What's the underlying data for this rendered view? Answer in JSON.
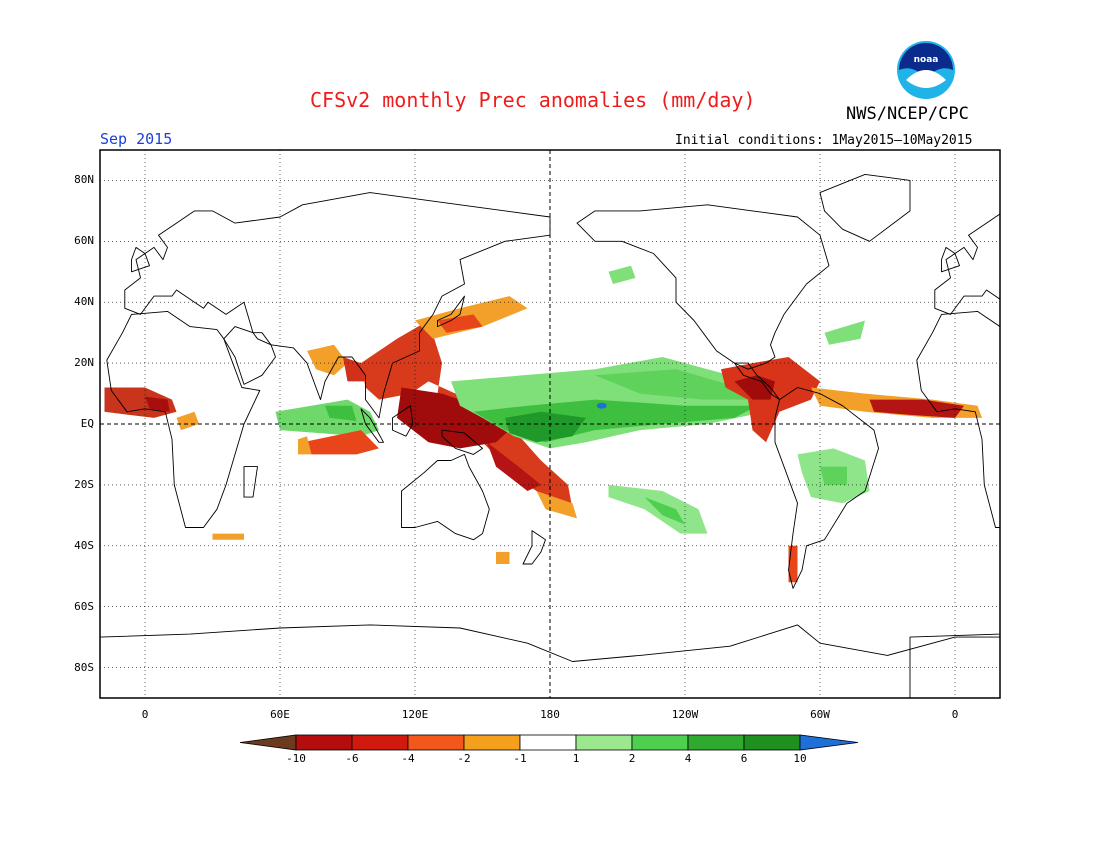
{
  "title": "CFSv2 monthly Prec anomalies (mm/day)",
  "agency": "NWS/NCEP/CPC",
  "logo_text": "noaa",
  "valid_month": "Sep 2015",
  "initial_conditions": "Initial conditions: 1May2015–10May2015",
  "map": {
    "projection": "equirectangular",
    "lon_range": [
      -20,
      380
    ],
    "lat_range": [
      -90,
      90
    ],
    "lat_ticks": [
      {
        "label": "80N",
        "lat": 80
      },
      {
        "label": "60N",
        "lat": 60
      },
      {
        "label": "40N",
        "lat": 40
      },
      {
        "label": "20N",
        "lat": 20
      },
      {
        "label": "EQ",
        "lat": 0
      },
      {
        "label": "20S",
        "lat": -20
      },
      {
        "label": "40S",
        "lat": -40
      },
      {
        "label": "60S",
        "lat": -60
      },
      {
        "label": "80S",
        "lat": -80
      }
    ],
    "lon_ticks": [
      {
        "label": "0",
        "lon": 0
      },
      {
        "label": "60E",
        "lon": 60
      },
      {
        "label": "120E",
        "lon": 120
      },
      {
        "label": "180",
        "lon": 180
      },
      {
        "label": "120W",
        "lon": 240
      },
      {
        "label": "60W",
        "lon": 300
      },
      {
        "label": "0",
        "lon": 360
      }
    ],
    "grid": "dotted",
    "reference_lines": [
      "equator",
      "dateline"
    ]
  },
  "colorbar": {
    "labels": [
      "-10",
      "-6",
      "-4",
      "-2",
      "-1",
      "1",
      "2",
      "4",
      "6",
      "10"
    ],
    "colors": [
      "#6b3a1f",
      "#b40d0d",
      "#d0190f",
      "#f2581b",
      "#f4a01c",
      "#ffffff",
      "#9be88f",
      "#4fcf4f",
      "#2eab2e",
      "#1f8f1f",
      "#1d70d8"
    ]
  },
  "anomaly_regions": [
    {
      "name": "west-africa-dry",
      "color": "#c8341c",
      "lonlat": [
        [
          -18,
          12
        ],
        [
          0,
          12
        ],
        [
          12,
          8
        ],
        [
          14,
          4
        ],
        [
          4,
          2
        ],
        [
          -18,
          4
        ]
      ]
    },
    {
      "name": "west-africa-core",
      "color": "#a80e0e",
      "lonlat": [
        [
          0,
          9
        ],
        [
          10,
          8
        ],
        [
          11,
          4
        ],
        [
          2,
          5
        ]
      ]
    },
    {
      "name": "west-africa-edge",
      "color": "#f2a02a",
      "lonlat": [
        [
          14,
          2
        ],
        [
          22,
          4
        ],
        [
          24,
          0
        ],
        [
          16,
          -2
        ]
      ]
    },
    {
      "name": "indian-ocean-wet",
      "color": "#6fd86a",
      "lonlat": [
        [
          58,
          4
        ],
        [
          90,
          8
        ],
        [
          100,
          4
        ],
        [
          104,
          -2
        ],
        [
          96,
          -4
        ],
        [
          60,
          -2
        ]
      ]
    },
    {
      "name": "indian-ocean-wet-inner",
      "color": "#3fbf3f",
      "lonlat": [
        [
          80,
          6
        ],
        [
          92,
          6
        ],
        [
          94,
          1
        ],
        [
          82,
          2
        ]
      ]
    },
    {
      "name": "south-indian-dry",
      "color": "#e8461a",
      "lonlat": [
        [
          70,
          -6
        ],
        [
          96,
          -2
        ],
        [
          104,
          -8
        ],
        [
          94,
          -10
        ],
        [
          74,
          -10
        ]
      ]
    },
    {
      "name": "south-indian-edge",
      "color": "#f2a02a",
      "lonlat": [
        [
          68,
          -5
        ],
        [
          72,
          -4
        ],
        [
          74,
          -10
        ],
        [
          68,
          -10
        ]
      ]
    },
    {
      "name": "india-dry",
      "color": "#f2a02a",
      "lonlat": [
        [
          72,
          24
        ],
        [
          84,
          26
        ],
        [
          90,
          20
        ],
        [
          84,
          16
        ],
        [
          76,
          18
        ]
      ]
    },
    {
      "name": "bay-bengal-dry",
      "color": "#d2301a",
      "lonlat": [
        [
          88,
          22
        ],
        [
          96,
          20
        ],
        [
          98,
          14
        ],
        [
          90,
          14
        ]
      ]
    },
    {
      "name": "maritime-continent-dry",
      "color": "#d83a1c",
      "lonlat": [
        [
          96,
          20
        ],
        [
          112,
          28
        ],
        [
          126,
          34
        ],
        [
          132,
          20
        ],
        [
          130,
          10
        ],
        [
          132,
          2
        ],
        [
          150,
          -6
        ],
        [
          166,
          -18
        ],
        [
          182,
          -26
        ],
        [
          190,
          -28
        ],
        [
          188,
          -20
        ],
        [
          176,
          -12
        ],
        [
          164,
          -2
        ],
        [
          152,
          6
        ],
        [
          138,
          10
        ],
        [
          126,
          14
        ],
        [
          118,
          10
        ],
        [
          104,
          8
        ],
        [
          98,
          12
        ]
      ]
    },
    {
      "name": "maritime-continent-core",
      "color": "#a00c0c",
      "lonlat": [
        [
          114,
          12
        ],
        [
          132,
          10
        ],
        [
          148,
          6
        ],
        [
          156,
          2
        ],
        [
          162,
          -2
        ],
        [
          156,
          -6
        ],
        [
          140,
          -8
        ],
        [
          126,
          -6
        ],
        [
          112,
          2
        ]
      ]
    },
    {
      "name": "south-pacific-dry-band",
      "color": "#b41414",
      "lonlat": [
        [
          152,
          -6
        ],
        [
          166,
          -14
        ],
        [
          176,
          -20
        ],
        [
          170,
          -22
        ],
        [
          156,
          -14
        ]
      ]
    },
    {
      "name": "spcz-edge",
      "color": "#f2a02a",
      "lonlat": [
        [
          174,
          -22
        ],
        [
          190,
          -26
        ],
        [
          192,
          -31
        ],
        [
          178,
          -28
        ]
      ]
    },
    {
      "name": "kuroshio-dry",
      "color": "#f2a02a",
      "lonlat": [
        [
          120,
          34
        ],
        [
          140,
          38
        ],
        [
          162,
          42
        ],
        [
          170,
          38
        ],
        [
          150,
          32
        ],
        [
          128,
          28
        ]
      ]
    },
    {
      "name": "kuroshio-dry-inner",
      "color": "#e8461a",
      "lonlat": [
        [
          130,
          34
        ],
        [
          146,
          36
        ],
        [
          150,
          32
        ],
        [
          134,
          30
        ]
      ]
    },
    {
      "name": "equatorial-pacific-wet",
      "color": "#7fe07a",
      "lonlat": [
        [
          136,
          14
        ],
        [
          168,
          16
        ],
        [
          200,
          18
        ],
        [
          230,
          22
        ],
        [
          250,
          18
        ],
        [
          270,
          14
        ],
        [
          284,
          10
        ],
        [
          276,
          4
        ],
        [
          250,
          0
        ],
        [
          220,
          -2
        ],
        [
          196,
          -6
        ],
        [
          180,
          -8
        ],
        [
          164,
          -4
        ],
        [
          150,
          2
        ],
        [
          140,
          6
        ]
      ]
    },
    {
      "name": "equatorial-pacific-wet-mid",
      "color": "#3fbf3f",
      "lonlat": [
        [
          146,
          4
        ],
        [
          170,
          6
        ],
        [
          200,
          8
        ],
        [
          240,
          6
        ],
        [
          272,
          6
        ],
        [
          262,
          2
        ],
        [
          230,
          0
        ],
        [
          200,
          -2
        ],
        [
          178,
          -6
        ],
        [
          160,
          -2
        ]
      ]
    },
    {
      "name": "equatorial-pacific-wet-core",
      "color": "#1f9a2a",
      "lonlat": [
        [
          160,
          2
        ],
        [
          176,
          4
        ],
        [
          196,
          2
        ],
        [
          190,
          -4
        ],
        [
          174,
          -6
        ],
        [
          162,
          -3
        ]
      ]
    },
    {
      "name": "pacific-itcz-wet",
      "color": "#5ed25a",
      "lonlat": [
        [
          200,
          16
        ],
        [
          236,
          18
        ],
        [
          264,
          12
        ],
        [
          270,
          8
        ],
        [
          248,
          8
        ],
        [
          220,
          10
        ]
      ]
    },
    {
      "name": "south-pacific-wet",
      "color": "#8fe58a",
      "lonlat": [
        [
          206,
          -20
        ],
        [
          230,
          -22
        ],
        [
          246,
          -28
        ],
        [
          250,
          -36
        ],
        [
          238,
          -36
        ],
        [
          222,
          -28
        ],
        [
          206,
          -24
        ]
      ]
    },
    {
      "name": "south-pacific-wet-inner",
      "color": "#4fcf4f",
      "lonlat": [
        [
          222,
          -24
        ],
        [
          236,
          -28
        ],
        [
          240,
          -33
        ],
        [
          230,
          -30
        ]
      ]
    },
    {
      "name": "central-america-dry",
      "color": "#d8341a",
      "lonlat": [
        [
          256,
          18
        ],
        [
          270,
          20
        ],
        [
          286,
          22
        ],
        [
          300,
          14
        ],
        [
          296,
          8
        ],
        [
          282,
          4
        ],
        [
          276,
          -6
        ],
        [
          270,
          -2
        ],
        [
          268,
          8
        ],
        [
          258,
          12
        ]
      ]
    },
    {
      "name": "central-america-core",
      "color": "#a00c0c",
      "lonlat": [
        [
          262,
          14
        ],
        [
          272,
          16
        ],
        [
          280,
          14
        ],
        [
          278,
          8
        ],
        [
          270,
          8
        ]
      ]
    },
    {
      "name": "tropical-atlantic-dry",
      "color": "#f2a02a",
      "lonlat": [
        [
          296,
          12
        ],
        [
          320,
          10
        ],
        [
          350,
          8
        ],
        [
          370,
          6
        ],
        [
          372,
          2
        ],
        [
          350,
          2
        ],
        [
          320,
          4
        ],
        [
          300,
          6
        ]
      ]
    },
    {
      "name": "tropical-atlantic-core",
      "color": "#b41414",
      "lonlat": [
        [
          322,
          8
        ],
        [
          346,
          8
        ],
        [
          364,
          6
        ],
        [
          360,
          2
        ],
        [
          340,
          3
        ],
        [
          324,
          4
        ]
      ]
    },
    {
      "name": "south-america-wet",
      "color": "#8fe58a",
      "lonlat": [
        [
          290,
          -10
        ],
        [
          306,
          -8
        ],
        [
          320,
          -12
        ],
        [
          322,
          -22
        ],
        [
          310,
          -26
        ],
        [
          296,
          -24
        ],
        [
          292,
          -16
        ]
      ]
    },
    {
      "name": "south-america-wet-inner",
      "color": "#5ed25a",
      "lonlat": [
        [
          300,
          -14
        ],
        [
          312,
          -14
        ],
        [
          312,
          -20
        ],
        [
          302,
          -20
        ]
      ]
    },
    {
      "name": "chile-dry",
      "color": "#e8461a",
      "lonlat": [
        [
          286,
          -40
        ],
        [
          290,
          -40
        ],
        [
          290,
          -52
        ],
        [
          286,
          -52
        ]
      ]
    },
    {
      "name": "southeast-pacific-dry",
      "color": "#f2a02a",
      "lonlat": [
        [
          30,
          -36
        ],
        [
          44,
          -36
        ],
        [
          44,
          -38
        ],
        [
          30,
          -38
        ]
      ]
    },
    {
      "name": "tasman-dry",
      "color": "#f2a02a",
      "lonlat": [
        [
          156,
          -42
        ],
        [
          162,
          -42
        ],
        [
          162,
          -46
        ],
        [
          156,
          -46
        ]
      ]
    },
    {
      "name": "north-pacific-wet-spot",
      "color": "#7fe07a",
      "lonlat": [
        [
          206,
          50
        ],
        [
          216,
          52
        ],
        [
          218,
          48
        ],
        [
          208,
          46
        ]
      ]
    },
    {
      "name": "gulf-coast-wet",
      "color": "#7fe07a",
      "lonlat": [
        [
          302,
          30
        ],
        [
          320,
          34
        ],
        [
          318,
          28
        ],
        [
          304,
          26
        ]
      ]
    }
  ],
  "wet_max_marker": {
    "lon": 203,
    "lat": 6,
    "color": "#1d70d8"
  }
}
